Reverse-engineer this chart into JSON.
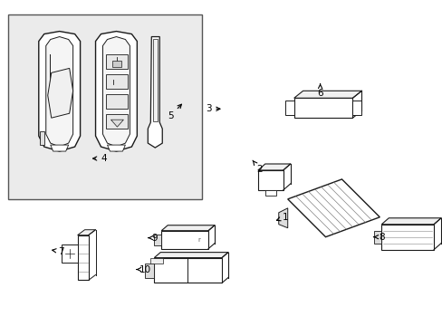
{
  "bg_color": "#ffffff",
  "box_bg": "#e8e8e8",
  "line_color": "#1a1a1a",
  "label_color": "#000000",
  "figsize": [
    4.89,
    3.6
  ],
  "dpi": 100
}
